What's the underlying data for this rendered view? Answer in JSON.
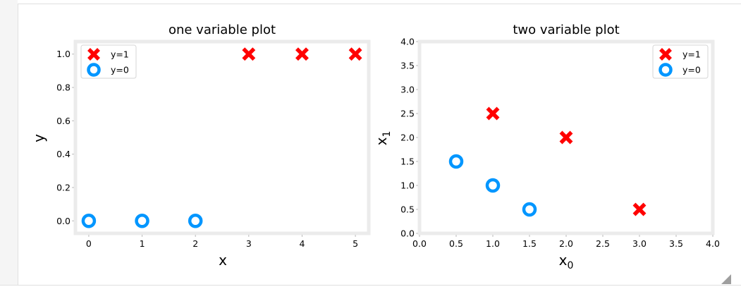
{
  "chart_data": [
    {
      "type": "scatter",
      "title": "one variable plot",
      "xlabel": "x",
      "ylabel": "y",
      "xlim": [
        -0.25,
        5.25
      ],
      "ylim": [
        -0.075,
        1.075
      ],
      "xticks": [
        0,
        1,
        2,
        3,
        4,
        5
      ],
      "xtick_labels": [
        "0",
        "1",
        "2",
        "3",
        "4",
        "5"
      ],
      "yticks": [
        0.0,
        0.2,
        0.4,
        0.6,
        0.8,
        1.0
      ],
      "ytick_labels": [
        "0.0",
        "0.2",
        "0.4",
        "0.6",
        "0.8",
        "1.0"
      ],
      "grid": false,
      "legend_position": "top-left",
      "series": [
        {
          "name": "y=1",
          "marker": "x",
          "color": "#ff0000",
          "points": [
            [
              3,
              1.0
            ],
            [
              4,
              1.0
            ],
            [
              5,
              1.0
            ]
          ]
        },
        {
          "name": "y=0",
          "marker": "o",
          "color": "#0096ff",
          "points": [
            [
              0,
              0.0
            ],
            [
              1,
              0.0
            ],
            [
              2,
              0.0
            ]
          ]
        }
      ]
    },
    {
      "type": "scatter",
      "title": "two variable plot",
      "xlabel_base": "x",
      "xlabel_sub": "0",
      "ylabel_base": "x",
      "ylabel_sub": "1",
      "xlim": [
        0,
        4
      ],
      "ylim": [
        0,
        4
      ],
      "xticks": [
        0,
        0.5,
        1,
        1.5,
        2,
        2.5,
        3,
        3.5,
        4
      ],
      "xtick_labels": [
        "0.0",
        "0.5",
        "1.0",
        "1.5",
        "2.0",
        "2.5",
        "3.0",
        "3.5",
        "4.0"
      ],
      "yticks": [
        0,
        0.5,
        1,
        1.5,
        2,
        2.5,
        3,
        3.5,
        4
      ],
      "ytick_labels": [
        "0.0",
        "0.5",
        "1.0",
        "1.5",
        "2.0",
        "2.5",
        "3.0",
        "3.5",
        "4.0"
      ],
      "grid": false,
      "legend_position": "top-right",
      "series": [
        {
          "name": "y=1",
          "marker": "x",
          "color": "#ff0000",
          "points": [
            [
              1,
              2.5
            ],
            [
              2,
              2.0
            ],
            [
              3,
              0.5
            ]
          ]
        },
        {
          "name": "y=0",
          "marker": "o",
          "color": "#0096ff",
          "points": [
            [
              0.5,
              1.5
            ],
            [
              1,
              1.0
            ],
            [
              1.5,
              0.5
            ]
          ]
        }
      ]
    }
  ]
}
